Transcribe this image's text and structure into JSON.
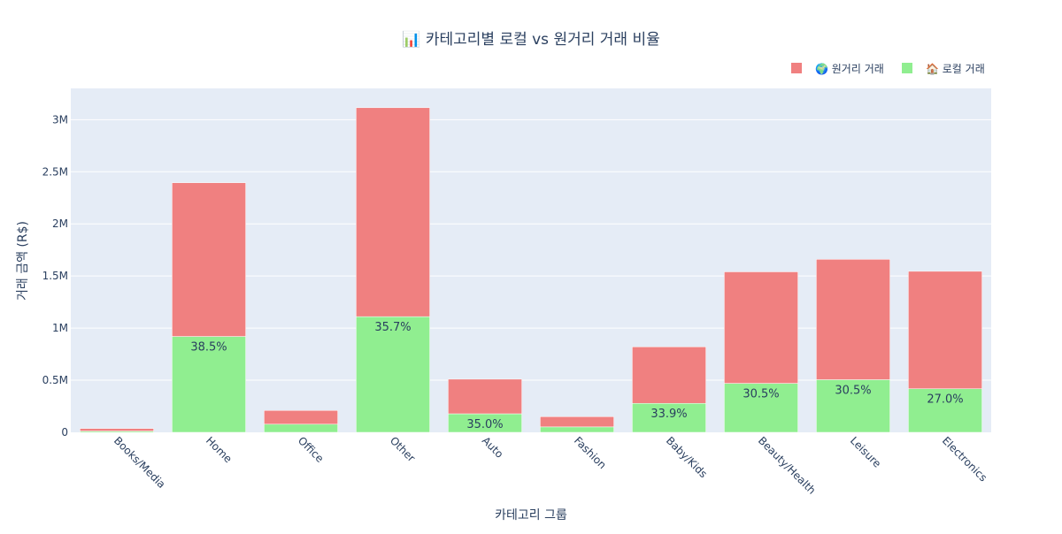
{
  "chart_data": {
    "type": "bar",
    "stacked": true,
    "title": "📊 카테고리별 로컬 vs 원거리 거래 비율",
    "xlabel": "카테고리 그룹",
    "ylabel": "거래 금액 (R$)",
    "ylim": [
      0,
      3300000
    ],
    "yticks": [
      0,
      500000,
      1000000,
      1500000,
      2000000,
      2500000,
      3000000
    ],
    "ytick_labels": [
      "0",
      "0.5M",
      "1M",
      "1.5M",
      "2M",
      "2.5M",
      "3M"
    ],
    "grid": true,
    "legend_position": "top-right",
    "categories": [
      "Books/Media",
      "Home",
      "Office",
      "Other",
      "Auto",
      "Fashion",
      "Baby/Kids",
      "Beauty/Health",
      "Leisure",
      "Electronics"
    ],
    "series": [
      {
        "name": "🏠 로컬 거래",
        "color": "#90ee90",
        "values": [
          12000,
          920000,
          78000,
          1110000,
          178000,
          52000,
          278000,
          470000,
          505000,
          418000
        ],
        "labels": [
          "",
          "38.5%",
          "",
          "35.7%",
          "35.0%",
          "",
          "33.9%",
          "30.5%",
          "30.5%",
          "27.0%"
        ]
      },
      {
        "name": "🌍 원거리 거래",
        "color": "#f08080",
        "values": [
          25000,
          1475000,
          132000,
          2005000,
          332000,
          98000,
          542000,
          1070000,
          1155000,
          1127000
        ]
      }
    ]
  }
}
